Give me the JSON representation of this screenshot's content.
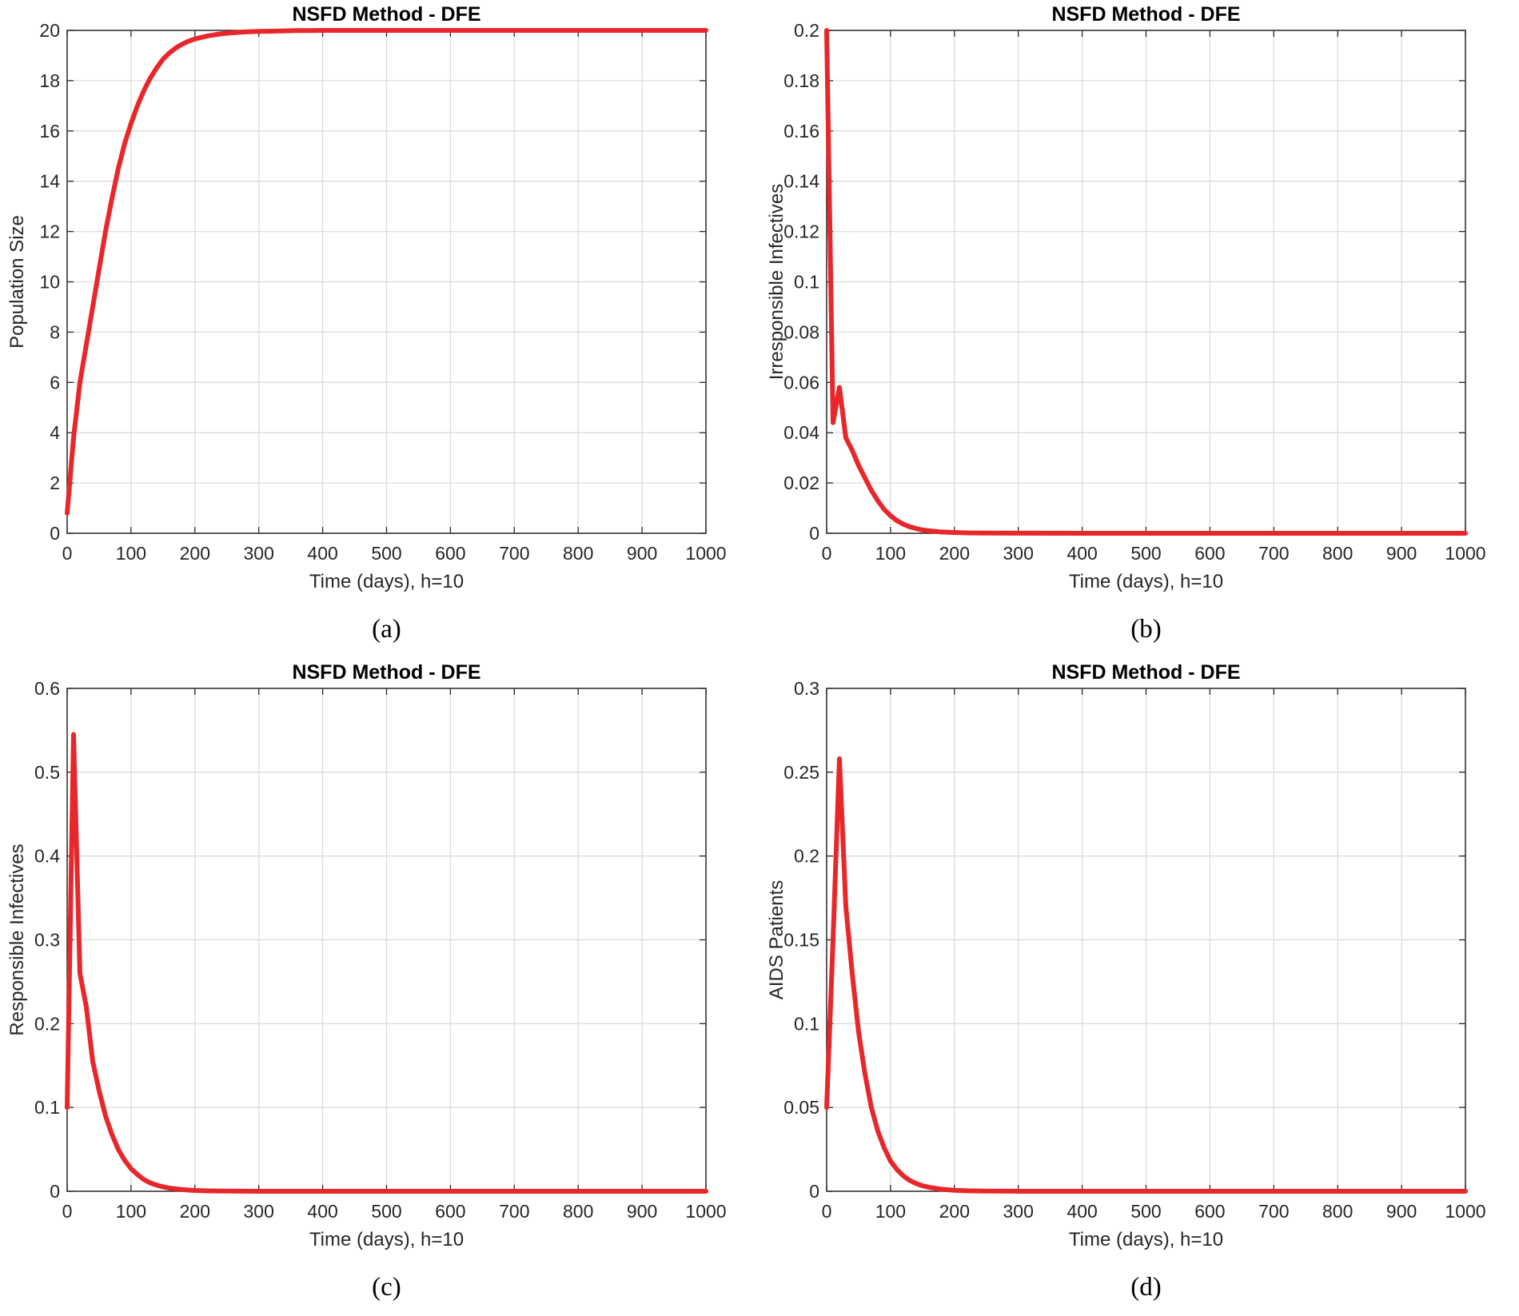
{
  "chart_data": [
    {
      "panel": "a",
      "type": "line",
      "title": "NSFD Method - DFE",
      "xlabel": "Time (days), h=10",
      "ylabel": "Population Size",
      "caption": "(a)",
      "xlim": [
        0,
        1000
      ],
      "ylim": [
        0,
        20
      ],
      "xticks": [
        0,
        100,
        200,
        300,
        400,
        500,
        600,
        700,
        800,
        900,
        1000
      ],
      "xtick_labels": [
        "0",
        "100",
        "200",
        "300",
        "400",
        "500",
        "600",
        "700",
        "800",
        "900",
        "1000"
      ],
      "yticks": [
        0,
        2,
        4,
        6,
        8,
        10,
        12,
        14,
        16,
        18,
        20
      ],
      "ytick_labels": [
        "0",
        "2",
        "4",
        "6",
        "8",
        "10",
        "12",
        "14",
        "16",
        "18",
        "20"
      ],
      "grid": true,
      "color": "#e8272b",
      "series": [
        {
          "name": "Population Size",
          "x": [
            0,
            10,
            20,
            30,
            40,
            50,
            60,
            70,
            80,
            90,
            100,
            110,
            120,
            130,
            140,
            150,
            160,
            170,
            180,
            190,
            200,
            220,
            240,
            260,
            280,
            300,
            320,
            340,
            360,
            380,
            400,
            450,
            500,
            600,
            700,
            800,
            900,
            1000
          ],
          "y": [
            0.8,
            3.8,
            6.0,
            7.5,
            9.0,
            10.5,
            12.0,
            13.3,
            14.5,
            15.5,
            16.3,
            17.0,
            17.6,
            18.1,
            18.5,
            18.85,
            19.1,
            19.3,
            19.45,
            19.57,
            19.66,
            19.78,
            19.86,
            19.91,
            19.94,
            19.96,
            19.97,
            19.98,
            19.99,
            19.99,
            20.0,
            20.0,
            20.0,
            20.0,
            20.0,
            20.0,
            20.0,
            20.0
          ]
        }
      ]
    },
    {
      "panel": "b",
      "type": "line",
      "title": "NSFD Method - DFE",
      "xlabel": "Time (days), h=10",
      "ylabel": "Irresponsible Infectives",
      "caption": "(b)",
      "xlim": [
        0,
        1000
      ],
      "ylim": [
        0,
        0.2
      ],
      "xticks": [
        0,
        100,
        200,
        300,
        400,
        500,
        600,
        700,
        800,
        900,
        1000
      ],
      "xtick_labels": [
        "0",
        "100",
        "200",
        "300",
        "400",
        "500",
        "600",
        "700",
        "800",
        "900",
        "1000"
      ],
      "yticks": [
        0,
        0.02,
        0.04,
        0.06,
        0.08,
        0.1,
        0.12,
        0.14,
        0.16,
        0.18,
        0.2
      ],
      "ytick_labels": [
        "0",
        "0.02",
        "0.04",
        "0.06",
        "0.08",
        "0.1",
        "0.12",
        "0.14",
        "0.16",
        "0.18",
        "0.2"
      ],
      "grid": true,
      "color": "#e8272b",
      "series": [
        {
          "name": "Irresponsible Infectives",
          "x": [
            0,
            10,
            20,
            30,
            40,
            50,
            60,
            70,
            80,
            90,
            100,
            110,
            120,
            130,
            140,
            150,
            160,
            180,
            200,
            220,
            250,
            300,
            400,
            500,
            600,
            700,
            800,
            900,
            1000
          ],
          "y": [
            0.2,
            0.044,
            0.058,
            0.038,
            0.033,
            0.027,
            0.022,
            0.017,
            0.013,
            0.0095,
            0.007,
            0.005,
            0.0036,
            0.0026,
            0.0019,
            0.0013,
            0.001,
            0.0005,
            0.0003,
            0.00015,
            0.0001,
            3e-05,
            0,
            0,
            0,
            0,
            0,
            0,
            0
          ]
        }
      ]
    },
    {
      "panel": "c",
      "type": "line",
      "title": "NSFD Method - DFE",
      "xlabel": "Time (days), h=10",
      "ylabel": "Responsible Infectives",
      "caption": "(c)",
      "xlim": [
        0,
        1000
      ],
      "ylim": [
        0,
        0.6
      ],
      "xticks": [
        0,
        100,
        200,
        300,
        400,
        500,
        600,
        700,
        800,
        900,
        1000
      ],
      "xtick_labels": [
        "0",
        "100",
        "200",
        "300",
        "400",
        "500",
        "600",
        "700",
        "800",
        "900",
        "1000"
      ],
      "yticks": [
        0,
        0.1,
        0.2,
        0.3,
        0.4,
        0.5,
        0.6
      ],
      "ytick_labels": [
        "0",
        "0.1",
        "0.2",
        "0.3",
        "0.4",
        "0.5",
        "0.6"
      ],
      "grid": true,
      "color": "#e8272b",
      "series": [
        {
          "name": "Responsible Infectives",
          "x": [
            0,
            10,
            20,
            30,
            40,
            50,
            60,
            70,
            80,
            90,
            100,
            110,
            120,
            130,
            140,
            150,
            160,
            180,
            200,
            220,
            250,
            300,
            400,
            500,
            600,
            700,
            800,
            900,
            1000
          ],
          "y": [
            0.1,
            0.545,
            0.26,
            0.22,
            0.155,
            0.12,
            0.09,
            0.068,
            0.05,
            0.037,
            0.027,
            0.02,
            0.014,
            0.01,
            0.0074,
            0.0053,
            0.0038,
            0.002,
            0.001,
            0.0005,
            0.0002,
            5e-05,
            0,
            0,
            0,
            0,
            0,
            0,
            0
          ]
        }
      ]
    },
    {
      "panel": "d",
      "type": "line",
      "title": "NSFD Method - DFE",
      "xlabel": "Time (days), h=10",
      "ylabel": "AIDS Patients",
      "caption": "(d)",
      "xlim": [
        0,
        1000
      ],
      "ylim": [
        0,
        0.3
      ],
      "xticks": [
        0,
        100,
        200,
        300,
        400,
        500,
        600,
        700,
        800,
        900,
        1000
      ],
      "xtick_labels": [
        "0",
        "100",
        "200",
        "300",
        "400",
        "500",
        "600",
        "700",
        "800",
        "900",
        "1000"
      ],
      "yticks": [
        0,
        0.05,
        0.1,
        0.15,
        0.2,
        0.25,
        0.3
      ],
      "ytick_labels": [
        "0",
        "0.05",
        "0.1",
        "0.15",
        "0.2",
        "0.25",
        "0.3"
      ],
      "grid": true,
      "color": "#e8272b",
      "series": [
        {
          "name": "AIDS Patients",
          "x": [
            0,
            10,
            20,
            30,
            40,
            50,
            60,
            70,
            80,
            90,
            100,
            110,
            120,
            130,
            140,
            150,
            160,
            180,
            200,
            220,
            250,
            300,
            400,
            500,
            600,
            700,
            800,
            900,
            1000
          ],
          "y": [
            0.05,
            0.15,
            0.258,
            0.17,
            0.13,
            0.095,
            0.07,
            0.05,
            0.036,
            0.026,
            0.018,
            0.013,
            0.0092,
            0.0065,
            0.0046,
            0.0033,
            0.0024,
            0.0012,
            0.0006,
            0.0003,
            0.0001,
            3e-05,
            0,
            0,
            0,
            0,
            0,
            0,
            0
          ]
        }
      ]
    }
  ]
}
